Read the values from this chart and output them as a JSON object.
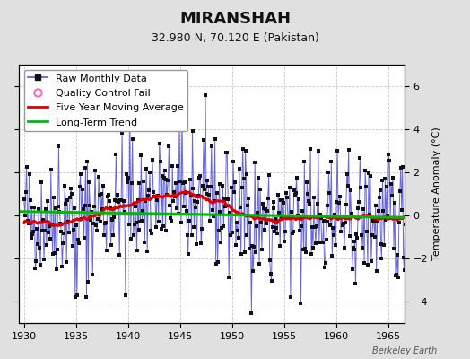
{
  "title": "MIRANSHAH",
  "subtitle": "32.980 N, 70.120 E (Pakistan)",
  "ylabel": "Temperature Anomaly (°C)",
  "watermark": "Berkeley Earth",
  "xlim": [
    1929.5,
    1966.5
  ],
  "ylim": [
    -5.0,
    7.0
  ],
  "yticks": [
    -4,
    -2,
    0,
    2,
    4,
    6
  ],
  "xticks": [
    1930,
    1935,
    1940,
    1945,
    1950,
    1955,
    1960,
    1965
  ],
  "bg_color": "#e0e0e0",
  "plot_bg": "#ffffff",
  "grid_color": "#c8c8c8",
  "raw_line_color": "#5555dd",
  "raw_marker_color": "#111111",
  "moving_avg_color": "#dd0000",
  "trend_color": "#00bb00",
  "trend_x": [
    1929.5,
    1966.5
  ],
  "trend_y": [
    0.18,
    -0.1
  ],
  "seed": 42,
  "legend_fontsize": 8,
  "title_fontsize": 13,
  "subtitle_fontsize": 9,
  "tick_fontsize": 8,
  "ylabel_fontsize": 8
}
